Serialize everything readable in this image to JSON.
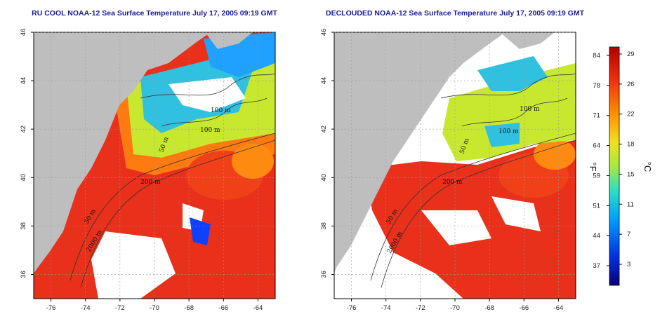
{
  "panels": [
    {
      "id": "left",
      "title": "RU COOL NOAA-12 Sea Surface Temperature July 17, 2005 09:19 GMT",
      "contour_labels": [
        "100 m",
        "100 m",
        "50 m",
        "200 m",
        "50 m",
        "2000 m"
      ]
    },
    {
      "id": "right",
      "title": "DECLOUDED NOAA-12 Sea Surface Temperature July 17, 2005 09:19 GMT",
      "contour_labels": [
        "100 m",
        "100 m",
        "50 m",
        "200 m",
        "50 m",
        "2000 m"
      ]
    }
  ],
  "axes": {
    "lon_ticks": [
      "-76",
      "-74",
      "-72",
      "-70",
      "-68",
      "-66",
      "-64"
    ],
    "lat_ticks": [
      "46",
      "44",
      "42",
      "40",
      "38",
      "36"
    ],
    "lon_range": [
      -77,
      -63
    ],
    "lat_range": [
      35,
      46
    ]
  },
  "colorbar": {
    "left_unit": "°F",
    "right_unit": "°C",
    "fahrenheit_ticks": [
      "84",
      "78",
      "71",
      "64",
      "59",
      "51",
      "44",
      "37"
    ],
    "celsius_ticks": [
      "29",
      "26",
      "22",
      "18",
      "15",
      "11",
      "7",
      "3"
    ],
    "colors": [
      "#08007a",
      "#0030e0",
      "#00a0ff",
      "#30e0c0",
      "#a8e840",
      "#f0e020",
      "#ff9000",
      "#f03010",
      "#b00000"
    ]
  },
  "colors": {
    "land": "#bebebe",
    "cloud": "#ffffff",
    "warm": "#e8301a",
    "hot": "#c01a10",
    "orange": "#ff7a10",
    "yellow_green": "#b8e030",
    "cyan": "#30c0e0",
    "blue": "#1040ff"
  }
}
